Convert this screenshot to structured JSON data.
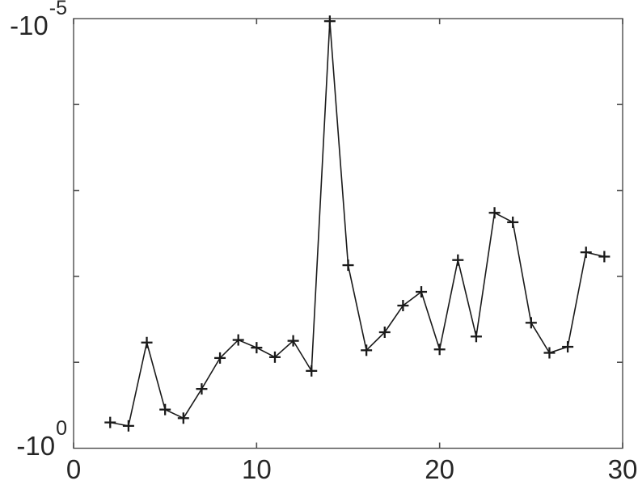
{
  "chart_data": {
    "type": "line",
    "title": "",
    "xlabel": "",
    "ylabel": "",
    "line_style": "solid",
    "marker": "+",
    "line_color": "#1a1a1a",
    "axis_color": "#4d4d4d",
    "background_color": "#ffffff",
    "grid": false,
    "legend": null,
    "yscale": "negative-log (value = -10^exponent)",
    "xlim": [
      0,
      30
    ],
    "xticks": [
      0,
      10,
      20,
      30
    ],
    "xtick_labels": [
      "0",
      "10",
      "20",
      "30"
    ],
    "y_exponent_top": -5,
    "y_exponent_bottom": 0,
    "y_decade_tick_exponents": [
      -4,
      -3,
      -2,
      -1
    ],
    "ytick_labels": [
      {
        "base": "-10",
        "exp": "-5"
      },
      {
        "base": "-10",
        "exp": "0"
      }
    ],
    "x": [
      2,
      3,
      4,
      5,
      6,
      7,
      8,
      9,
      10,
      11,
      12,
      13,
      14,
      15,
      16,
      17,
      18,
      19,
      20,
      21,
      22,
      23,
      24,
      25,
      26,
      27,
      28,
      29
    ],
    "y_exponents": [
      -0.3,
      -0.26,
      -1.23,
      -0.45,
      -0.35,
      -0.69,
      -1.05,
      -1.26,
      -1.17,
      -1.06,
      -1.25,
      -0.9,
      -4.97,
      -2.13,
      -1.14,
      -1.35,
      -1.66,
      -1.82,
      -1.15,
      -2.19,
      -1.3,
      -2.74,
      -2.63,
      -1.46,
      -1.11,
      -1.18,
      -2.28,
      -2.23
    ],
    "values_approx": [
      -0.5,
      -0.55,
      -0.059,
      -0.35,
      -0.45,
      -0.2,
      -0.089,
      -0.055,
      -0.068,
      -0.087,
      -0.056,
      -0.13,
      -1.07e-05,
      -0.0074,
      -0.072,
      -0.045,
      -0.022,
      -0.015,
      -0.071,
      -0.0065,
      -0.05,
      -0.0018,
      -0.0023,
      -0.035,
      -0.078,
      -0.066,
      -0.0052,
      -0.0059
    ]
  }
}
